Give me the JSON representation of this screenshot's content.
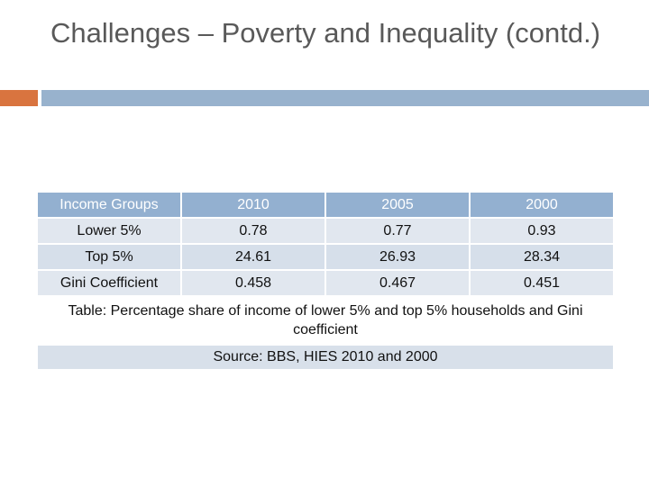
{
  "slide": {
    "title": "Challenges – Poverty and Inequality (contd.)",
    "accent_color": "#d9743f",
    "bar_color": "#98b2cd"
  },
  "table": {
    "headers": [
      "Income Groups",
      "2010",
      "2005",
      "2000"
    ],
    "rows": [
      [
        "Lower 5%",
        "0.78",
        "0.77",
        "0.93"
      ],
      [
        "Top 5%",
        "24.61",
        "26.93",
        "28.34"
      ],
      [
        "Gini Coefficient",
        "0.458",
        "0.467",
        "0.451"
      ]
    ],
    "caption": "Table: Percentage share of income of lower 5% and top 5% households and Gini coefficient",
    "source": "Source: BBS, HIES 2010 and 2000",
    "header_color": "#93b0d0",
    "row_color": "#dbe3ed"
  }
}
